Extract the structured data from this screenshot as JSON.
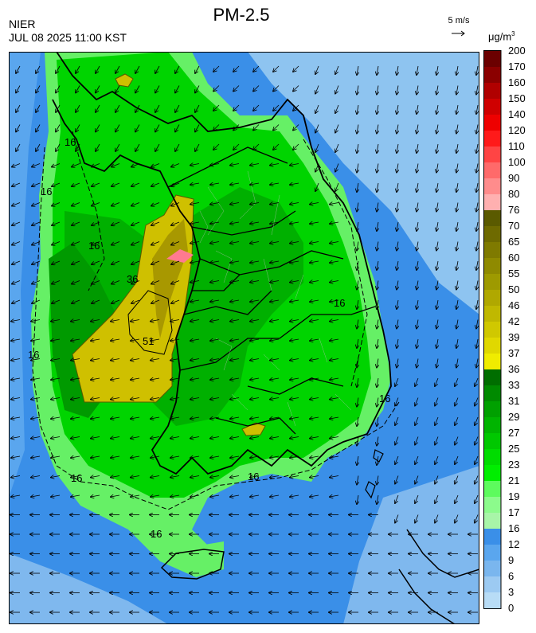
{
  "header": {
    "title": "PM-2.5",
    "org": "NIER",
    "timestamp": "JUL 08 2025 11:00 KST",
    "wind_reference": "5 m/s",
    "unit_base": "μg/m",
    "unit_exp": "3"
  },
  "legend": {
    "ticks": [
      "200",
      "170",
      "160",
      "150",
      "140",
      "120",
      "110",
      "100",
      "90",
      "80",
      "76",
      "70",
      "65",
      "60",
      "55",
      "50",
      "46",
      "42",
      "39",
      "37",
      "36",
      "33",
      "31",
      "29",
      "27",
      "25",
      "23",
      "21",
      "19",
      "17",
      "16",
      "12",
      "9",
      "6",
      "3",
      "0"
    ],
    "colors": [
      "#6b0000",
      "#8b0000",
      "#b00000",
      "#cf0000",
      "#ee0000",
      "#ff1a1a",
      "#ff4444",
      "#ff6a6a",
      "#ff8c8c",
      "#ffb0b0",
      "#5a5a00",
      "#6e6a00",
      "#7f7a00",
      "#8f8a00",
      "#9e9a00",
      "#b0a800",
      "#c0b800",
      "#d0c800",
      "#e0d800",
      "#f0ec00",
      "#006e00",
      "#008a00",
      "#00a000",
      "#00b400",
      "#00c800",
      "#00dc00",
      "#00ee00",
      "#5dfb5d",
      "#8cfb8c",
      "#a8f5a8",
      "#3a8fe8",
      "#5aa6ee",
      "#7ab6ee",
      "#9ccaf2",
      "#b8dcf6"
    ]
  },
  "contour_labels": [
    "16",
    "16",
    "16",
    "16",
    "16",
    "16",
    "16",
    "16",
    "16",
    "36",
    "51"
  ],
  "map_colors": {
    "sea_deep": "#3a8fe8",
    "sea_light": "#8ec4f0",
    "land_low": "#00d400",
    "land_mid": "#00b000",
    "land_light": "#66f066",
    "high": "#cfc000",
    "high_dark": "#a89800",
    "peak": "#ff7a90"
  }
}
